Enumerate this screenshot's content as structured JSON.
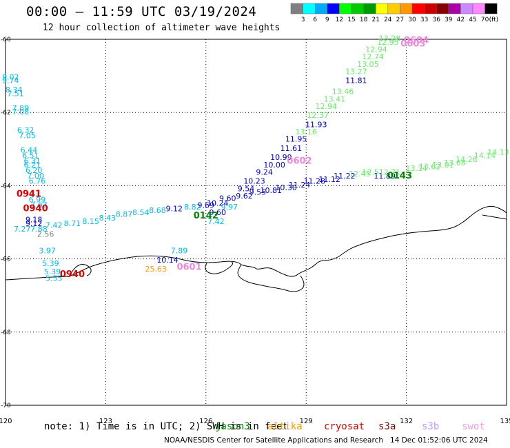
{
  "header": {
    "title": "00:00 – 11:59 UTC 03/19/2024",
    "subtitle": "12 hour collection of altimeter wave heights"
  },
  "colorbar": {
    "unit": "(ft)",
    "bins": [
      {
        "color": "#808080",
        "label": "3"
      },
      {
        "color": "#00ffff",
        "label": "6"
      },
      {
        "color": "#00aaff",
        "label": "9"
      },
      {
        "color": "#0000ff",
        "label": "12"
      },
      {
        "color": "#00ff00",
        "label": "15"
      },
      {
        "color": "#00cc00",
        "label": "18"
      },
      {
        "color": "#009900",
        "label": "21"
      },
      {
        "color": "#ffff00",
        "label": "24"
      },
      {
        "color": "#ffcc00",
        "label": "27"
      },
      {
        "color": "#ff9900",
        "label": "30"
      },
      {
        "color": "#ff0000",
        "label": "33"
      },
      {
        "color": "#cc0000",
        "label": "36"
      },
      {
        "color": "#880000",
        "label": "39"
      },
      {
        "color": "#aa00aa",
        "label": "42"
      },
      {
        "color": "#cc88ff",
        "label": "45"
      },
      {
        "color": "#ff88ff",
        "label": "70"
      },
      {
        "color": "#000000",
        "label": ""
      }
    ]
  },
  "axes": {
    "lon_ticks": [
      "120",
      "123",
      "126",
      "129",
      "132",
      "135"
    ],
    "lat_ticks": [
      "-60",
      "-62",
      "-64",
      "-66",
      "-68",
      "-70"
    ],
    "lon_range": [
      120,
      135
    ],
    "lat_range": [
      -60,
      -70
    ],
    "grid": true
  },
  "footer": {
    "note": "note: 1) Time is in UTC; 2) SWH is in feet",
    "credit": "NOAA/NESDIS Center for Satellite Applications and Research",
    "generated": "14 Dec 01:52:06 UTC 2024",
    "satellites": [
      {
        "name": "jason3",
        "color": "#008800"
      },
      {
        "name": "altika",
        "color": "#ff9900"
      },
      {
        "name": "cryosat",
        "color": "#dd0000"
      },
      {
        "name": "s3a",
        "color": "#880000"
      },
      {
        "name": "s3b",
        "color": "#bb99ff"
      },
      {
        "name": "swot",
        "color": "#ff99dd"
      }
    ]
  },
  "chart_data": {
    "type": "scatter",
    "colors": {
      "cyan": "#00bbee",
      "blue": "#0000cc",
      "green": "#66ee66",
      "darkgreen": "#008800",
      "red": "#dd0000",
      "pink": "#ee88dd",
      "gray": "#808080",
      "orange": "#ff9900"
    },
    "track_times": [
      {
        "text": "0941",
        "lon": 120.7,
        "lat": -64.3,
        "color": "red"
      },
      {
        "text": "0940",
        "lon": 120.9,
        "lat": -64.7,
        "color": "red"
      },
      {
        "text": "0940",
        "lon": 122.0,
        "lat": -66.5,
        "color": "red"
      },
      {
        "text": "0142",
        "lon": 126.0,
        "lat": -64.9,
        "color": "darkgreen"
      },
      {
        "text": "0143",
        "lon": 131.8,
        "lat": -63.8,
        "color": "darkgreen"
      },
      {
        "text": "0601",
        "lon": 125.5,
        "lat": -66.3,
        "color": "pink"
      },
      {
        "text": "0602",
        "lon": 128.8,
        "lat": -63.4,
        "color": "pink"
      },
      {
        "text": "0603",
        "lon": 132.2,
        "lat": -60.2,
        "color": "pink"
      },
      {
        "text": "0604",
        "lon": 132.3,
        "lat": -60.1,
        "color": "pink"
      }
    ],
    "points": [
      {
        "text": "9.02",
        "lon": 120.15,
        "lat": -61.1,
        "color": "cyan"
      },
      {
        "text": "9.74",
        "lon": 120.15,
        "lat": -61.2,
        "color": "cyan"
      },
      {
        "text": "8.34",
        "lon": 120.25,
        "lat": -61.45,
        "color": "cyan"
      },
      {
        "text": "7.51",
        "lon": 120.3,
        "lat": -61.55,
        "color": "cyan"
      },
      {
        "text": "7.89",
        "lon": 120.45,
        "lat": -61.95,
        "color": "cyan"
      },
      {
        "text": "7.08",
        "lon": 120.45,
        "lat": -62.05,
        "color": "cyan"
      },
      {
        "text": "6.32",
        "lon": 120.6,
        "lat": -62.55,
        "color": "cyan"
      },
      {
        "text": "7.05",
        "lon": 120.65,
        "lat": -62.7,
        "color": "cyan"
      },
      {
        "text": "6.44",
        "lon": 120.7,
        "lat": -63.1,
        "color": "cyan"
      },
      {
        "text": "6.51",
        "lon": 120.75,
        "lat": -63.25,
        "color": "cyan"
      },
      {
        "text": "6.31",
        "lon": 120.8,
        "lat": -63.4,
        "color": "cyan"
      },
      {
        "text": "6.21",
        "lon": 120.8,
        "lat": -63.5,
        "color": "cyan"
      },
      {
        "text": "6.20",
        "lon": 120.85,
        "lat": -63.65,
        "color": "cyan"
      },
      {
        "text": "7.00",
        "lon": 120.9,
        "lat": -63.8,
        "color": "cyan"
      },
      {
        "text": "6.76",
        "lon": 120.95,
        "lat": -63.95,
        "color": "cyan"
      },
      {
        "text": "6.99",
        "lon": 120.95,
        "lat": -64.45,
        "color": "cyan"
      },
      {
        "text": "7.07",
        "lon": 121.0,
        "lat": -64.6,
        "color": "cyan"
      },
      {
        "text": "9.18",
        "lon": 120.85,
        "lat": -65.0,
        "color": "blue"
      },
      {
        "text": "9.12",
        "lon": 120.85,
        "lat": -65.1,
        "color": "blue"
      },
      {
        "text": "7.27",
        "lon": 120.5,
        "lat": -65.25,
        "color": "cyan"
      },
      {
        "text": "7.88",
        "lon": 121.0,
        "lat": -65.25,
        "color": "cyan"
      },
      {
        "text": "7.42",
        "lon": 121.45,
        "lat": -65.15,
        "color": "cyan"
      },
      {
        "text": "8.71",
        "lon": 122.0,
        "lat": -65.1,
        "color": "cyan"
      },
      {
        "text": "8.15",
        "lon": 122.55,
        "lat": -65.05,
        "color": "cyan"
      },
      {
        "text": "8.43",
        "lon": 123.05,
        "lat": -64.95,
        "color": "cyan"
      },
      {
        "text": "8.87",
        "lon": 123.55,
        "lat": -64.85,
        "color": "cyan"
      },
      {
        "text": "8.54",
        "lon": 124.05,
        "lat": -64.8,
        "color": "cyan"
      },
      {
        "text": "8.68",
        "lon": 124.55,
        "lat": -64.75,
        "color": "cyan"
      },
      {
        "text": "2.56",
        "lon": 121.2,
        "lat": -65.4,
        "color": "gray"
      },
      {
        "text": "3.97",
        "lon": 121.25,
        "lat": -65.85,
        "color": "cyan"
      },
      {
        "text": "5.39",
        "lon": 121.35,
        "lat": -66.2,
        "color": "cyan"
      },
      {
        "text": "5.39",
        "lon": 121.4,
        "lat": -66.42,
        "color": "cyan"
      },
      {
        "text": "5.55",
        "lon": 121.45,
        "lat": -66.6,
        "color": "cyan"
      },
      {
        "text": "9.12",
        "lon": 125.05,
        "lat": -64.7,
        "color": "blue"
      },
      {
        "text": "8.82",
        "lon": 125.6,
        "lat": -64.65,
        "color": "cyan"
      },
      {
        "text": "9.69",
        "lon": 126.0,
        "lat": -64.6,
        "color": "blue"
      },
      {
        "text": "10.24",
        "lon": 126.35,
        "lat": -64.55,
        "color": "blue"
      },
      {
        "text": "9.97",
        "lon": 126.7,
        "lat": -64.65,
        "color": "cyan"
      },
      {
        "text": "9.60",
        "lon": 126.65,
        "lat": -64.42,
        "color": "blue"
      },
      {
        "text": "9.62",
        "lon": 127.15,
        "lat": -64.35,
        "color": "blue"
      },
      {
        "text": "9.55",
        "lon": 127.55,
        "lat": -64.25,
        "color": "blue"
      },
      {
        "text": "10.81",
        "lon": 127.95,
        "lat": -64.2,
        "color": "blue"
      },
      {
        "text": "10.30",
        "lon": 128.4,
        "lat": -64.12,
        "color": "blue"
      },
      {
        "text": "11.24",
        "lon": 128.8,
        "lat": -64.05,
        "color": "blue"
      },
      {
        "text": "11.28",
        "lon": 129.25,
        "lat": -63.95,
        "color": "blue"
      },
      {
        "text": "11.12",
        "lon": 129.7,
        "lat": -63.9,
        "color": "blue"
      },
      {
        "text": "11.22",
        "lon": 130.15,
        "lat": -63.8,
        "color": "blue"
      },
      {
        "text": "9.60",
        "lon": 126.35,
        "lat": -64.8,
        "color": "blue"
      },
      {
        "text": "7.42",
        "lon": 126.3,
        "lat": -65.05,
        "color": "cyan"
      },
      {
        "text": "9.54",
        "lon": 127.2,
        "lat": -64.15,
        "color": "blue"
      },
      {
        "text": "10.23",
        "lon": 127.45,
        "lat": -63.95,
        "color": "blue"
      },
      {
        "text": "9.24",
        "lon": 127.75,
        "lat": -63.7,
        "color": "blue"
      },
      {
        "text": "10.00",
        "lon": 128.05,
        "lat": -63.5,
        "color": "blue"
      },
      {
        "text": "10.99",
        "lon": 128.25,
        "lat": -63.3,
        "color": "blue"
      },
      {
        "text": "11.61",
        "lon": 128.55,
        "lat": -63.05,
        "color": "blue"
      },
      {
        "text": "11.95",
        "lon": 128.7,
        "lat": -62.8,
        "color": "blue"
      },
      {
        "text": "13.16",
        "lon": 129.0,
        "lat": -62.6,
        "color": "green"
      },
      {
        "text": "11.93",
        "lon": 129.3,
        "lat": -62.4,
        "color": "blue"
      },
      {
        "text": "12.37",
        "lon": 129.35,
        "lat": -62.15,
        "color": "green"
      },
      {
        "text": "12.94",
        "lon": 129.6,
        "lat": -61.9,
        "color": "green"
      },
      {
        "text": "13.41",
        "lon": 129.85,
        "lat": -61.7,
        "color": "green"
      },
      {
        "text": "13.46",
        "lon": 130.1,
        "lat": -61.5,
        "color": "green"
      },
      {
        "text": "11.81",
        "lon": 130.5,
        "lat": -61.2,
        "color": "blue"
      },
      {
        "text": "13.27",
        "lon": 130.5,
        "lat": -60.95,
        "color": "green"
      },
      {
        "text": "13.05",
        "lon": 130.85,
        "lat": -60.75,
        "color": "green"
      },
      {
        "text": "12.74",
        "lon": 131.0,
        "lat": -60.55,
        "color": "green"
      },
      {
        "text": "12.94",
        "lon": 131.1,
        "lat": -60.35,
        "color": "green"
      },
      {
        "text": "12.95",
        "lon": 131.45,
        "lat": -60.15,
        "color": "green"
      },
      {
        "text": "13.28",
        "lon": 131.5,
        "lat": -60.05,
        "color": "green"
      },
      {
        "text": "11.89",
        "lon": 131.35,
        "lat": -63.8,
        "color": "blue"
      },
      {
        "text": "12.45",
        "lon": 130.6,
        "lat": -63.75,
        "color": "green"
      },
      {
        "text": "12.51",
        "lon": 131.0,
        "lat": -63.7,
        "color": "green"
      },
      {
        "text": "12.71",
        "lon": 131.5,
        "lat": -63.7,
        "color": "green"
      },
      {
        "text": "13.14",
        "lon": 132.3,
        "lat": -63.6,
        "color": "green"
      },
      {
        "text": "13.62",
        "lon": 132.7,
        "lat": -63.55,
        "color": "green"
      },
      {
        "text": "13.01",
        "lon": 133.1,
        "lat": -63.5,
        "color": "green"
      },
      {
        "text": "13.68",
        "lon": 133.45,
        "lat": -63.45,
        "color": "green"
      },
      {
        "text": "14.26",
        "lon": 133.8,
        "lat": -63.35,
        "color": "green"
      },
      {
        "text": "14.14",
        "lon": 134.35,
        "lat": -63.25,
        "color": "green"
      },
      {
        "text": "14.13",
        "lon": 134.75,
        "lat": -63.15,
        "color": "green"
      },
      {
        "text": "10.14",
        "lon": 124.85,
        "lat": -66.1,
        "color": "blue"
      },
      {
        "text": "7.89",
        "lon": 125.2,
        "lat": -65.85,
        "color": "cyan"
      },
      {
        "text": "25.63",
        "lon": 124.5,
        "lat": -66.35,
        "color": "orange"
      }
    ]
  }
}
